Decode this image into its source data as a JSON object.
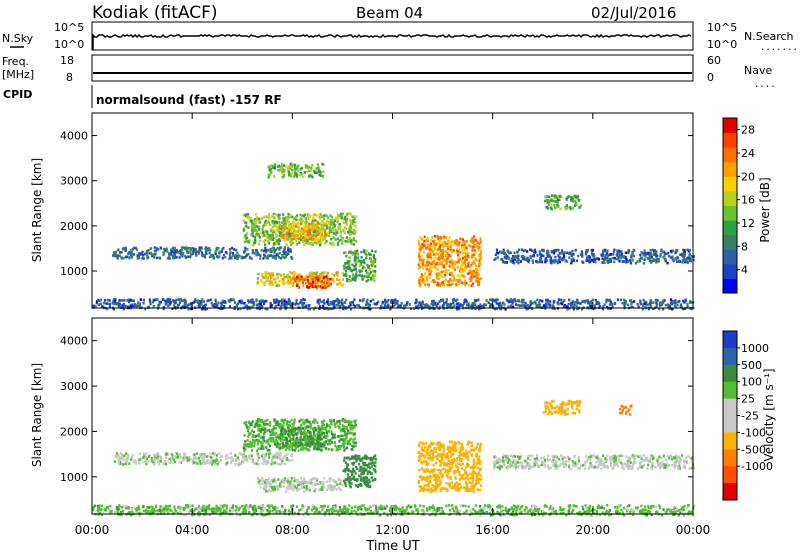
{
  "header": {
    "station": "Kodiak (fitACF)",
    "beam": "Beam 04",
    "date": "02/Jul/2016"
  },
  "params": {
    "nsky_label": "N.Sky",
    "nsearch_label": "N.Search",
    "freq_label": "Freq.",
    "freq_unit": "[MHz]",
    "nave_label": "Nave",
    "cpid_label": "CPID",
    "cpid_text": "normalsound (fast) -157 RF",
    "noise_left_ticks": [
      "10^5",
      "10^0"
    ],
    "noise_right_ticks": [
      "10^5",
      "10^0"
    ],
    "freq_ticks": [
      "18",
      "8"
    ],
    "nave_ticks": [
      "60",
      "0"
    ],
    "nsearch_dots": "........",
    "nave_dots": "...."
  },
  "chart_data": [
    {
      "type": "heatmap",
      "name": "power",
      "title": "",
      "xlabel": "",
      "ylabel": "Slant Range [km]",
      "ylim": [
        180,
        4500
      ],
      "yticks": [
        "1000",
        "2000",
        "3000",
        "4000"
      ],
      "xticks": [
        "00:00",
        "04:00",
        "08:00",
        "12:00",
        "16:00",
        "20:00",
        "00:00"
      ],
      "colorbar": {
        "label": "Power [dB]",
        "ticks": [
          "4",
          "8",
          "12",
          "16",
          "20",
          "24",
          "28"
        ],
        "range": [
          0,
          30
        ],
        "colors": [
          "#0000ff",
          "#1a3fc8",
          "#2f5fa8",
          "#3a8060",
          "#30a040",
          "#6ec030",
          "#b8d020",
          "#ffd000",
          "#ffa000",
          "#ff7000",
          "#ff4000",
          "#e00000"
        ]
      },
      "regions": [
        {
          "t0": 0.8,
          "t1": 8.0,
          "r0": 1300,
          "r1": 1550,
          "value": 7
        },
        {
          "t0": 6.0,
          "t1": 10.5,
          "r0": 1600,
          "r1": 2300,
          "value": 14
        },
        {
          "t0": 7.5,
          "t1": 9.3,
          "r0": 1700,
          "r1": 2100,
          "value": 20
        },
        {
          "t0": 6.5,
          "t1": 10.0,
          "r0": 700,
          "r1": 1000,
          "value": 18
        },
        {
          "t0": 8.0,
          "t1": 9.5,
          "r0": 650,
          "r1": 900,
          "value": 26
        },
        {
          "t0": 10.0,
          "t1": 11.3,
          "r0": 800,
          "r1": 1500,
          "value": 12
        },
        {
          "t0": 13.0,
          "t1": 15.5,
          "r0": 700,
          "r1": 1800,
          "value": 22
        },
        {
          "t0": 16.0,
          "t1": 24.0,
          "r0": 1200,
          "r1": 1500,
          "value": 6
        },
        {
          "t0": 0.0,
          "t1": 24.0,
          "r0": 180,
          "r1": 400,
          "value": 6
        },
        {
          "t0": 7.0,
          "t1": 9.2,
          "r0": 3100,
          "r1": 3400,
          "value": 13
        },
        {
          "t0": 18.0,
          "t1": 19.5,
          "r0": 2400,
          "r1": 2700,
          "value": 12
        }
      ]
    },
    {
      "type": "heatmap",
      "name": "velocity",
      "title": "",
      "xlabel": "Time UT",
      "ylabel": "Slant Range [km]",
      "ylim": [
        180,
        4500
      ],
      "yticks": [
        "1000",
        "2000",
        "3000",
        "4000"
      ],
      "xticks": [
        "00:00",
        "04:00",
        "08:00",
        "12:00",
        "16:00",
        "20:00",
        "00:00"
      ],
      "colorbar": {
        "label": "Velocity [m s⁻¹]",
        "ticks": [
          "1000",
          "500",
          "100",
          "25",
          "-25",
          "-100",
          "-500",
          "-1000"
        ],
        "colors": [
          "#1f3cc8",
          "#2f64a8",
          "#3a8a40",
          "#50c030",
          "#c8c8c8",
          "#c8c8c8",
          "#ffb000",
          "#ff8000",
          "#ff5000",
          "#e00000"
        ]
      },
      "regions": [
        {
          "t0": 0.8,
          "t1": 8.0,
          "r0": 1300,
          "r1": 1550,
          "value": 0
        },
        {
          "t0": 6.0,
          "t1": 10.5,
          "r0": 1600,
          "r1": 2300,
          "value": 80
        },
        {
          "t0": 7.5,
          "t1": 9.3,
          "r0": 1700,
          "r1": 2100,
          "value": 120
        },
        {
          "t0": 6.5,
          "t1": 10.0,
          "r0": 700,
          "r1": 1000,
          "value": 0
        },
        {
          "t0": 10.0,
          "t1": 11.3,
          "r0": 800,
          "r1": 1500,
          "value": 200
        },
        {
          "t0": 13.0,
          "t1": 15.5,
          "r0": 700,
          "r1": 1800,
          "value": -300
        },
        {
          "t0": 16.0,
          "t1": 24.0,
          "r0": 1200,
          "r1": 1500,
          "value": 0
        },
        {
          "t0": 0.0,
          "t1": 24.0,
          "r0": 180,
          "r1": 400,
          "value": 60
        },
        {
          "t0": 18.0,
          "t1": 19.5,
          "r0": 2400,
          "r1": 2700,
          "value": -200
        },
        {
          "t0": 21.0,
          "t1": 21.5,
          "r0": 2400,
          "r1": 2600,
          "value": -600
        }
      ]
    }
  ]
}
